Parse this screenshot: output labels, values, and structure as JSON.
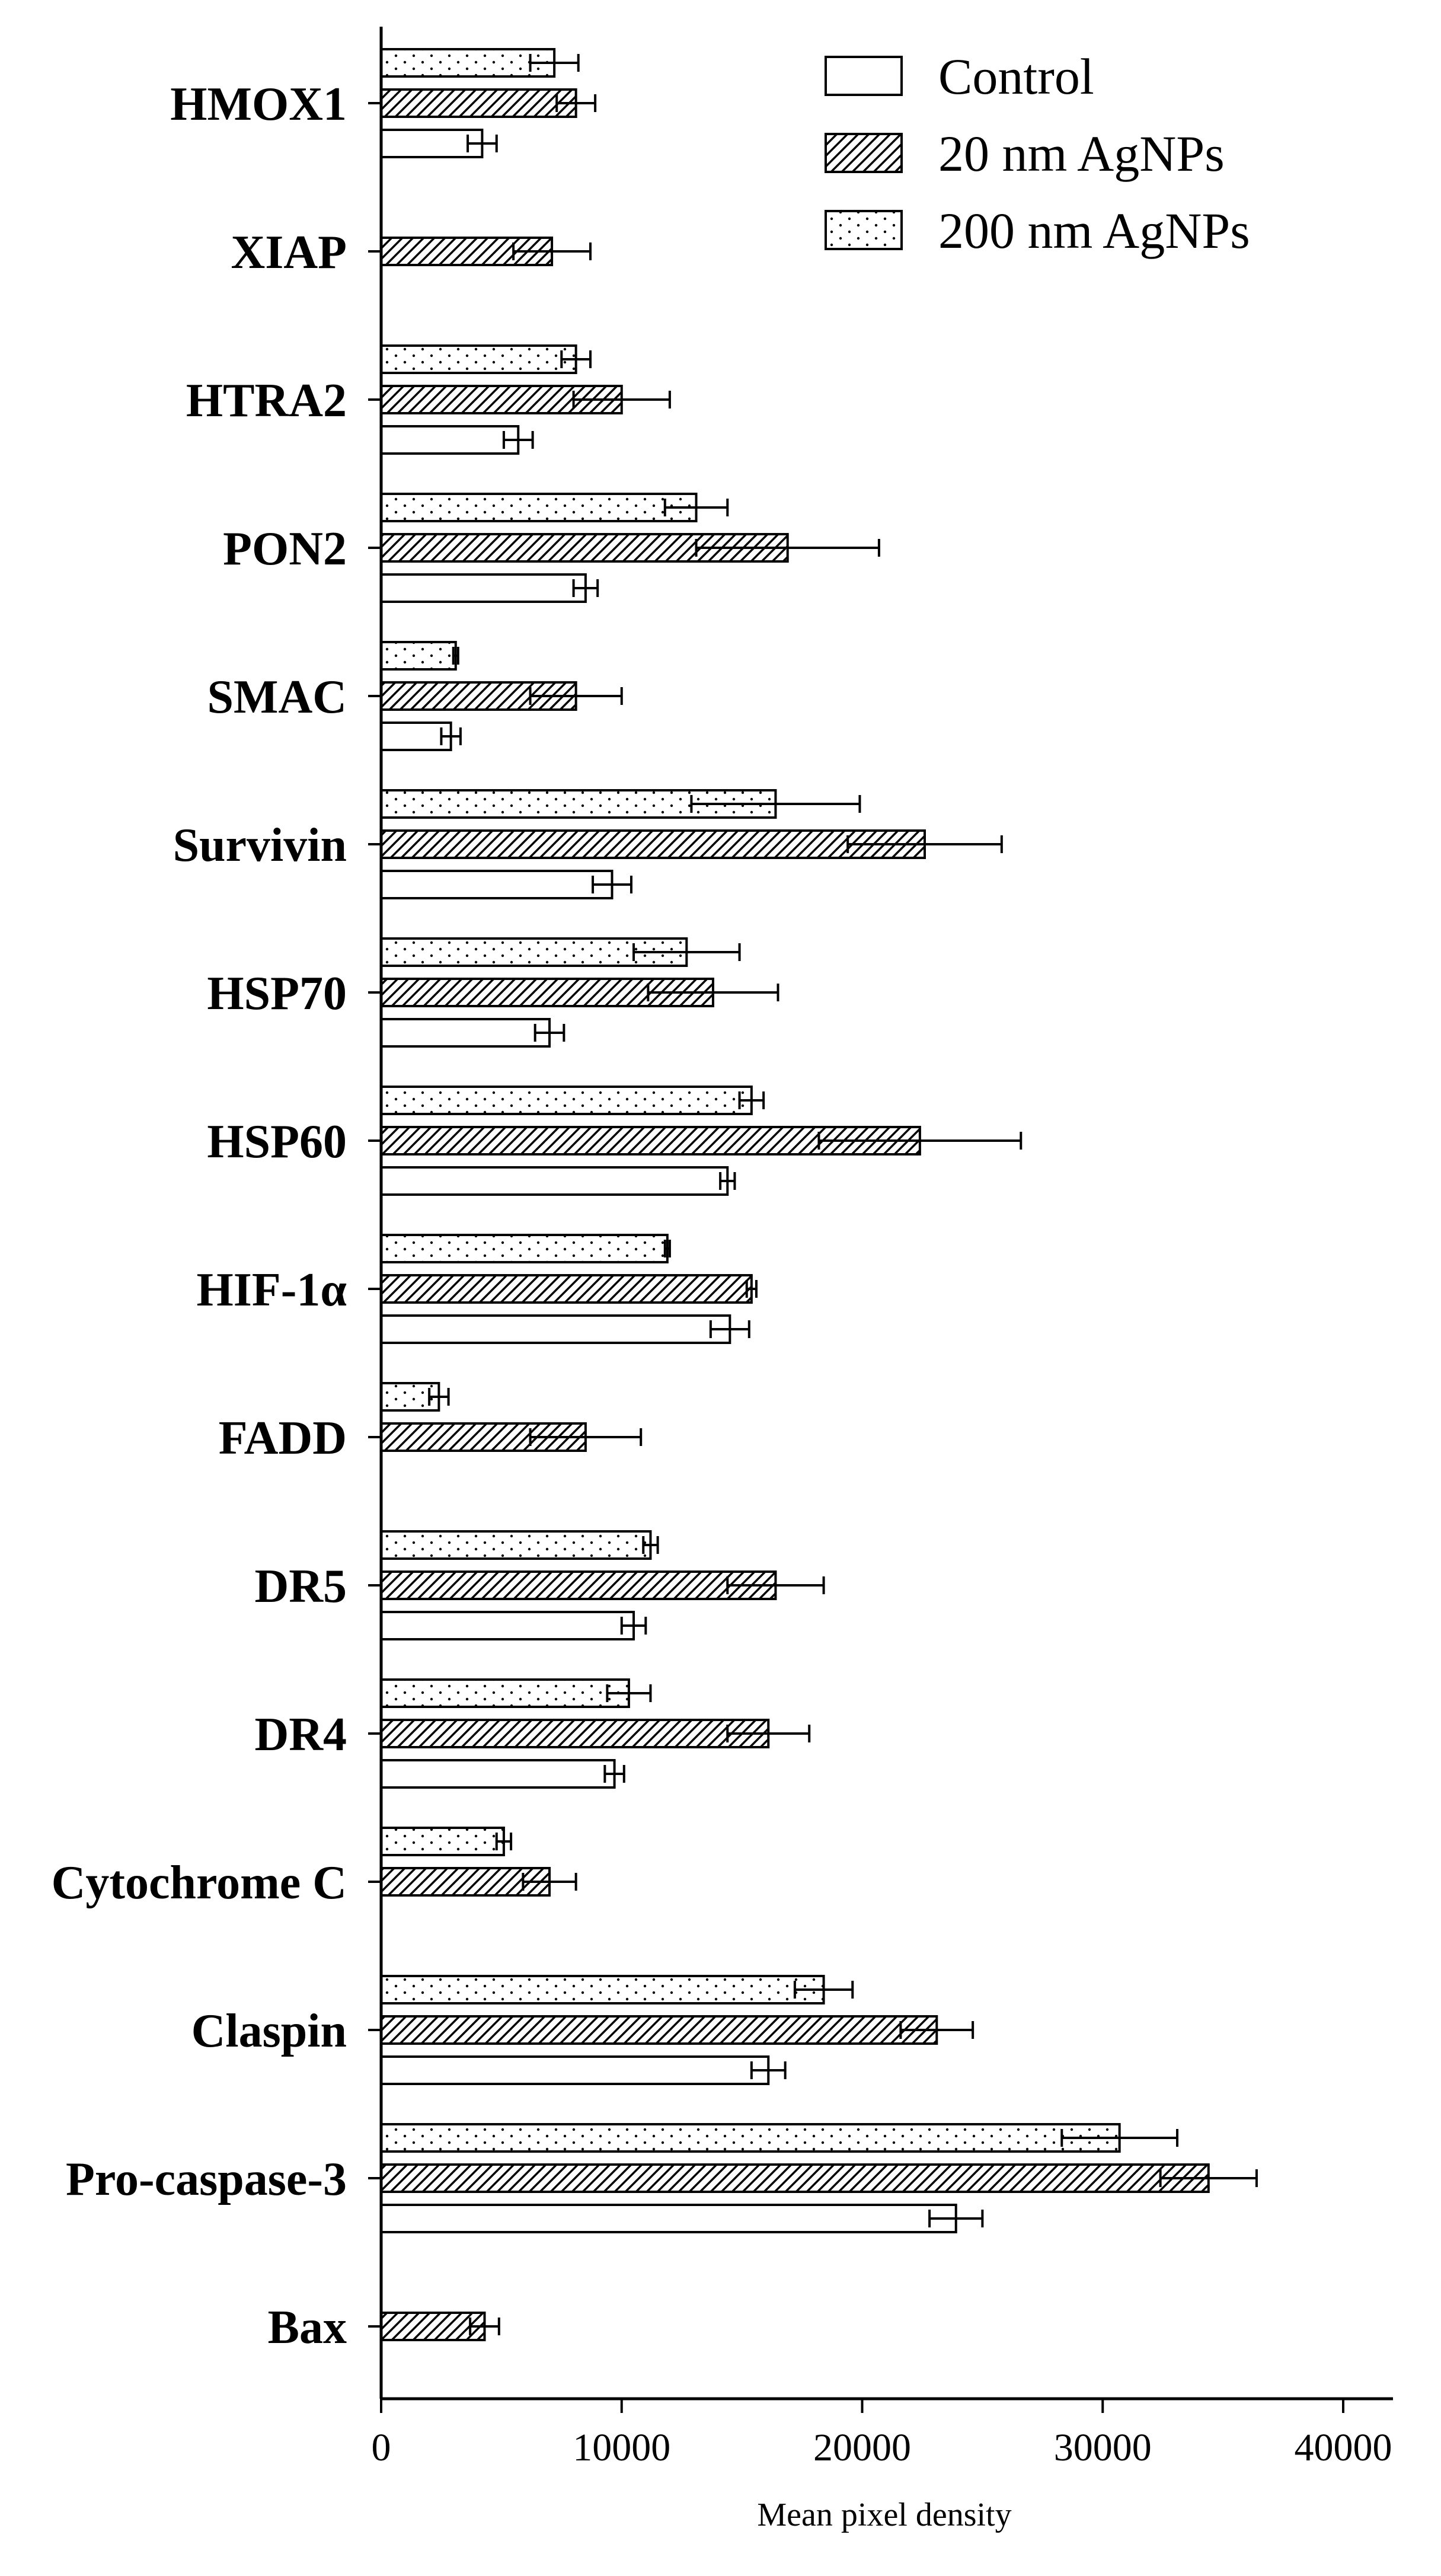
{
  "chart_data": {
    "type": "bar",
    "orientation": "horizontal",
    "xlabel": "Mean pixel density",
    "ylabel": "",
    "xlim": [
      0,
      42000
    ],
    "xticks": [
      0,
      10000,
      20000,
      30000,
      40000
    ],
    "xtick_labels": [
      "0",
      "10000",
      "20000",
      "30000",
      "40000"
    ],
    "legend_position": "top-right",
    "categories": [
      "HMOX1",
      "XIAP",
      "HTRA2",
      "PON2",
      "SMAC",
      "Survivin",
      "HSP70",
      "HSP60",
      "HIF-1α",
      "FADD",
      "DR5",
      "DR4",
      "Cytochrome C",
      "Claspin",
      "Pro-caspase-3",
      "Bax"
    ],
    "series": [
      {
        "name": "Control",
        "pattern": "empty",
        "values": [
          4200,
          null,
          5700,
          8500,
          2900,
          9600,
          7000,
          14400,
          14500,
          null,
          10500,
          9700,
          null,
          16100,
          23900,
          null
        ],
        "errors": [
          600,
          null,
          600,
          500,
          400,
          800,
          600,
          300,
          800,
          null,
          500,
          400,
          null,
          700,
          1100,
          null
        ]
      },
      {
        "name": "20 nm AgNPs",
        "pattern": "hatched",
        "values": [
          8100,
          7100,
          10000,
          16900,
          8100,
          22600,
          13800,
          22400,
          15400,
          8500,
          16400,
          16100,
          7000,
          23100,
          34400,
          4300
        ],
        "errors": [
          800,
          1600,
          2000,
          3800,
          1900,
          3200,
          2700,
          4200,
          200,
          2300,
          2000,
          1700,
          1100,
          1500,
          2000,
          600
        ]
      },
      {
        "name": "200 nm AgNPs",
        "pattern": "dotted",
        "values": [
          7200,
          null,
          8100,
          13100,
          3100,
          16400,
          12700,
          15400,
          11900,
          2400,
          11200,
          10300,
          5100,
          18400,
          30700,
          null
        ],
        "errors": [
          1000,
          null,
          600,
          1300,
          100,
          3500,
          2200,
          500,
          100,
          400,
          300,
          900,
          300,
          1200,
          2400,
          null
        ]
      }
    ]
  }
}
